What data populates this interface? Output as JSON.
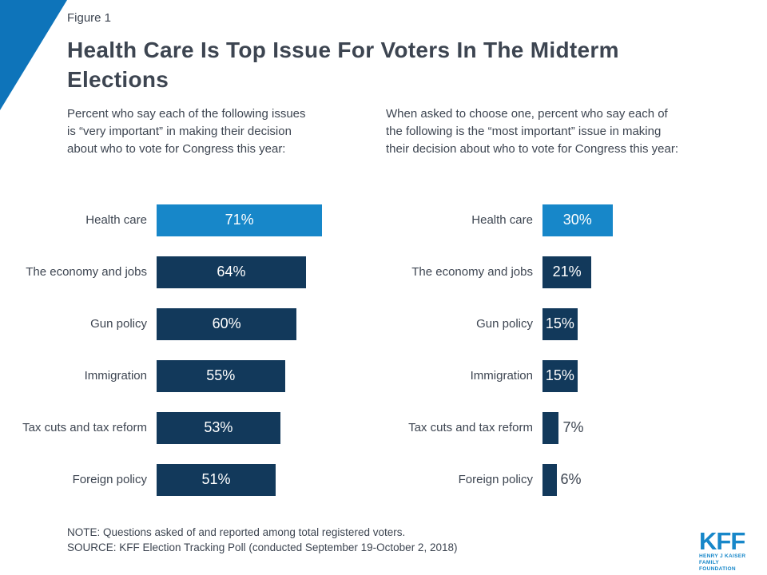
{
  "figure_label": "Figure 1",
  "title": "Health Care Is Top Issue For Voters In The Midterm\nElections",
  "note": "NOTE: Questions asked of and reported among total registered voters.",
  "source": "SOURCE: KFF Election Tracking Poll (conducted September 19-October 2, 2018)",
  "logo": {
    "acronym": "KFF",
    "line1": "HENRY J KAISER",
    "line2": "FAMILY FOUNDATION"
  },
  "colors": {
    "accent_blue": "#1787c9",
    "navy": "#12395b",
    "triangle_blue": "#0e74ba",
    "text": "#3d4551"
  },
  "chart_data": [
    {
      "type": "bar",
      "orientation": "horizontal",
      "title": "Percent who say each of the following issues\nis “very important” in making their decision\nabout who to vote for Congress this year:",
      "categories": [
        "Health care",
        "The economy and jobs",
        "Gun policy",
        "Immigration",
        "Tax cuts and tax reform",
        "Foreign policy"
      ],
      "values": [
        71,
        64,
        60,
        55,
        53,
        51
      ],
      "labels": [
        "71%",
        "64%",
        "60%",
        "55%",
        "53%",
        "51%"
      ],
      "xlim": [
        0,
        100
      ],
      "highlight_category": "Health care",
      "grid": false,
      "legend": "none"
    },
    {
      "type": "bar",
      "orientation": "horizontal",
      "title": "When asked to choose one, percent who say each of\nthe following is the “most important” issue in making\ntheir decision about who to vote for Congress this year:",
      "categories": [
        "Health care",
        "The economy and jobs",
        "Gun policy",
        "Immigration",
        "Tax cuts and tax reform",
        "Foreign policy"
      ],
      "values": [
        30,
        21,
        15,
        15,
        7,
        6
      ],
      "labels": [
        "30%",
        "21%",
        "15%",
        "15%",
        "7%",
        "6%"
      ],
      "xlim": [
        0,
        100
      ],
      "highlight_category": "Health care",
      "grid": false,
      "legend": "none"
    }
  ]
}
